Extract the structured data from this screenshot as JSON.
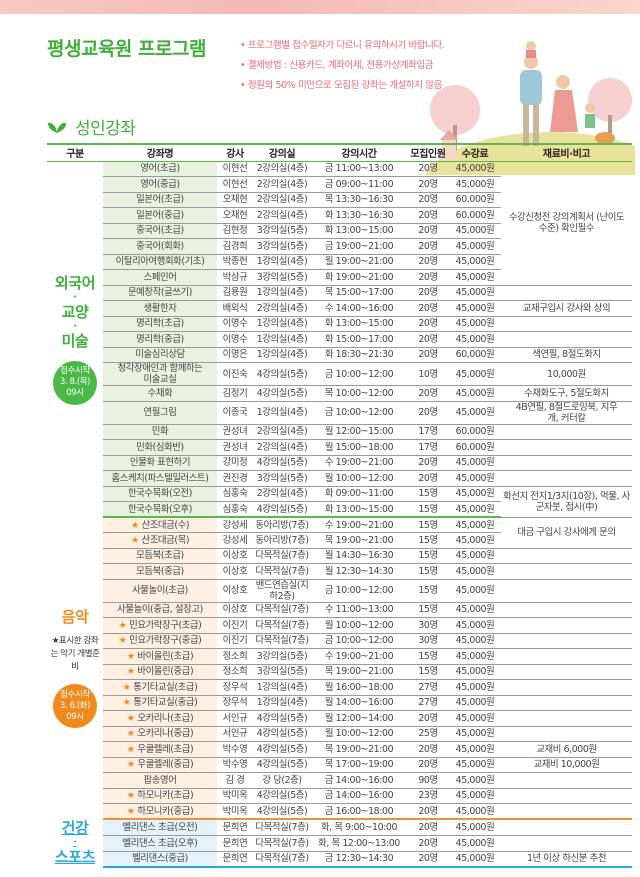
{
  "header": {
    "title": "평생교육원 프로그램",
    "notes": [
      "프로그램별 접수일자가 다르니 유의하시기 바랍니다.",
      "결제방법 : 신용카드, 계좌이체, 전용가상계좌입금",
      "정원의 50% 미만으로 모집된 강좌는 개설하지 않음"
    ]
  },
  "section_title": "성인강좌",
  "colors": {
    "green": "#3fae3a",
    "orange": "#f08a1c",
    "blue": "#29a8e0",
    "pink": "#ea6a73"
  },
  "columns": [
    "구분",
    "강좌명",
    "강사",
    "강의실",
    "강의시간",
    "모집인원",
    "수강료",
    "재료비·비고"
  ],
  "sections": [
    {
      "category": [
        "외국어",
        "·",
        "교양",
        "·",
        "미술"
      ],
      "badge": [
        "접수시작",
        "3. 8.(목)",
        "09시"
      ],
      "color": "#3fae3a",
      "rows": [
        {
          "name": "영어(초급)",
          "teacher": "이현선",
          "room": "2강의실(4층)",
          "time": "금 11:00~13:00",
          "cap": "20명",
          "fee": "45,000원",
          "note": "수강신청전 강의계획서 (난이도 수준) 확인필수",
          "note_span": 8
        },
        {
          "name": "영어(중급)",
          "teacher": "이현선",
          "room": "2강의실(4층)",
          "time": "금 09:00~11:00",
          "cap": "20명",
          "fee": "45,000원"
        },
        {
          "name": "일본어(초급)",
          "teacher": "오채현",
          "room": "2강의실(4층)",
          "time": "목 13:30~16:30",
          "cap": "20명",
          "fee": "60,000원"
        },
        {
          "name": "일본어(중급)",
          "teacher": "오채현",
          "room": "2강의실(4층)",
          "time": "화 13:30~16:30",
          "cap": "20명",
          "fee": "60,000원"
        },
        {
          "name": "중국어(초급)",
          "teacher": "김현정",
          "room": "3강의실(5층)",
          "time": "화 13:00~15:00",
          "cap": "20명",
          "fee": "45,000원"
        },
        {
          "name": "중국어(회화)",
          "teacher": "김경희",
          "room": "3강의실(5층)",
          "time": "금 19:00~21:00",
          "cap": "20명",
          "fee": "45,000원"
        },
        {
          "name": "이탈리아여행회화(기초)",
          "teacher": "박종헌",
          "room": "1강의실(4층)",
          "time": "월 19:00~21:00",
          "cap": "20명",
          "fee": "45,000원"
        },
        {
          "name": "스페인어",
          "teacher": "박삼규",
          "room": "3강의실(5층)",
          "time": "화 19:00~21:00",
          "cap": "20명",
          "fee": "45,000원"
        },
        {
          "name": "문예창작(글쓰기)",
          "teacher": "김용원",
          "room": "1강의실(4층)",
          "time": "목 15:00~17:00",
          "cap": "20명",
          "fee": "45,000원",
          "note": "",
          "note_span": 1
        },
        {
          "name": "생활한자",
          "teacher": "배외식",
          "room": "2강의실(4층)",
          "time": "수 14:00~16:00",
          "cap": "20명",
          "fee": "45,000원",
          "note": "교재구입시 강사와 상의",
          "note_span": 1
        },
        {
          "name": "명리학(초급)",
          "teacher": "이명수",
          "room": "1강의실(4층)",
          "time": "화 13:00~15:00",
          "cap": "20명",
          "fee": "45,000원",
          "note": "",
          "note_span": 1
        },
        {
          "name": "명리학(중급)",
          "teacher": "이명수",
          "room": "1강의실(4층)",
          "time": "화 15:00~17:00",
          "cap": "20명",
          "fee": "45,000원",
          "note": "",
          "note_span": 1
        },
        {
          "name": "미술심리상담",
          "teacher": "이명은",
          "room": "1강의실(4층)",
          "time": "화 18:30~21:30",
          "cap": "20명",
          "fee": "60,000원",
          "note": "색연필, 8절도화지",
          "note_span": 1
        },
        {
          "name": "청각장애인과 함께하는 미술교실",
          "teacher": "이진숙",
          "room": "4강의실(5층)",
          "time": "금 10:00~12:00",
          "cap": "10명",
          "fee": "45,000원",
          "note": "10,000원",
          "note_span": 1,
          "tall": true
        },
        {
          "name": "수채화",
          "teacher": "김정기",
          "room": "4강의실(5층)",
          "time": "목 10:00~12:00",
          "cap": "20명",
          "fee": "45,000원",
          "note": "수채화도구, 5절도화지",
          "note_span": 1
        },
        {
          "name": "연필그림",
          "teacher": "이종국",
          "room": "1강의실(4층)",
          "time": "금 10:00~12:00",
          "cap": "20명",
          "fee": "45,000원",
          "note": "4B연필, 8절드로잉북, 지우개, 커터칼",
          "note_span": 1,
          "tall": true
        },
        {
          "name": "민화",
          "teacher": "권성녀",
          "room": "2강의실(4층)",
          "time": "월 12:00~15:00",
          "cap": "17명",
          "fee": "60,000원",
          "note": "",
          "note_span": 1
        },
        {
          "name": "민화(심화반)",
          "teacher": "권성녀",
          "room": "2강의실(4층)",
          "time": "월 15:00~18:00",
          "cap": "17명",
          "fee": "60,000원",
          "note": "",
          "note_span": 1
        },
        {
          "name": "인물화 표현하기",
          "teacher": "강미정",
          "room": "4강의실(5층)",
          "time": "수 19:00~21:00",
          "cap": "20명",
          "fee": "45,000원",
          "note": "",
          "note_span": 1
        },
        {
          "name": "홈스케치(파스텔일러스트)",
          "teacher": "권진경",
          "room": "3강의실(5층)",
          "time": "월 10:00~12:00",
          "cap": "20명",
          "fee": "45,000원",
          "note": "",
          "note_span": 1
        },
        {
          "name": "한국수묵화(오전)",
          "teacher": "심홍숙",
          "room": "2강의실(4층)",
          "time": "화 09:00~11:00",
          "cap": "15명",
          "fee": "45,000원",
          "note": "화선지 전지1/3지(10장), 먹물, 사군자붓, 접시(中)",
          "note_span": 2
        },
        {
          "name": "한국수묵화(오후)",
          "teacher": "심홍숙",
          "room": "4강의실(5층)",
          "time": "화 13:00~15:00",
          "cap": "15명",
          "fee": "45,000원"
        }
      ]
    },
    {
      "category": [
        "음악"
      ],
      "remark": "★표시한 강좌는 악기 개별준비",
      "badge": [
        "접수시작",
        "3. 6.(화)",
        "09시"
      ],
      "color": "#f08a1c",
      "rows": [
        {
          "star": true,
          "name": "산조대금(수)",
          "teacher": "강성세",
          "room": "동아리방(7층)",
          "time": "수 19:00~21:00",
          "cap": "15명",
          "fee": "45,000원",
          "note": "대금 구입시 강사에게 문의",
          "note_span": 2
        },
        {
          "star": true,
          "name": "산조대금(목)",
          "teacher": "강성세",
          "room": "동아리방(7층)",
          "time": "목 19:00~21:00",
          "cap": "15명",
          "fee": "45,000원"
        },
        {
          "name": "모듬북(초급)",
          "teacher": "이상호",
          "room": "다목적실(7층)",
          "time": "월 14:30~16:30",
          "cap": "15명",
          "fee": "45,000원",
          "note": "",
          "note_span": 1
        },
        {
          "name": "모듬북(중급)",
          "teacher": "이상호",
          "room": "다목적실(7층)",
          "time": "월 12:30~14:30",
          "cap": "15명",
          "fee": "45,000원",
          "note": "",
          "note_span": 1
        },
        {
          "name": "사물놀이(초급)",
          "teacher": "이상호",
          "room": "밴드연습실(지하2층)",
          "time": "금 10:00~12:00",
          "cap": "15명",
          "fee": "45,000원",
          "note": "",
          "note_span": 1
        },
        {
          "name": "사물놀이(중급, 설장고)",
          "teacher": "이상호",
          "room": "다목적실(7층)",
          "time": "수 11:00~13:00",
          "cap": "15명",
          "fee": "45,000원",
          "note": "",
          "note_span": 1
        },
        {
          "star": true,
          "name": "민요가락장구(초급)",
          "teacher": "이진기",
          "room": "다목적실(7층)",
          "time": "월 10:00~12:00",
          "cap": "30명",
          "fee": "45,000원",
          "note": "",
          "note_span": 1
        },
        {
          "star": true,
          "name": "민요가락장구(중급)",
          "teacher": "이진기",
          "room": "다목적실(7층)",
          "time": "금 10:00~12:00",
          "cap": "30명",
          "fee": "45,000원",
          "note": "",
          "note_span": 1
        },
        {
          "star": true,
          "name": "바이올린(초급)",
          "teacher": "정소희",
          "room": "3강의실(5층)",
          "time": "수 19:00~21:00",
          "cap": "15명",
          "fee": "45,000원",
          "note": "",
          "note_span": 1
        },
        {
          "star": true,
          "name": "바이올린(중급)",
          "teacher": "정소희",
          "room": "3강의실(5층)",
          "time": "목 19:00~21:00",
          "cap": "15명",
          "fee": "45,000원",
          "note": "",
          "note_span": 1
        },
        {
          "star": true,
          "name": "통기타교실(초급)",
          "teacher": "장우석",
          "room": "1강의실(4층)",
          "time": "월 16:00~18:00",
          "cap": "27명",
          "fee": "45,000원",
          "note": "",
          "note_span": 1
        },
        {
          "star": true,
          "name": "통기타교실(중급)",
          "teacher": "장우석",
          "room": "1강의실(4층)",
          "time": "월 14:00~16:00",
          "cap": "27명",
          "fee": "45,000원",
          "note": "",
          "note_span": 1
        },
        {
          "star": true,
          "name": "오카리나(초급)",
          "teacher": "서인규",
          "room": "4강의실(5층)",
          "time": "월 12:00~14:00",
          "cap": "20명",
          "fee": "45,000원",
          "note": "",
          "note_span": 1
        },
        {
          "star": true,
          "name": "오카리나(중급)",
          "teacher": "서인규",
          "room": "4강의실(5층)",
          "time": "월 10:00~12:00",
          "cap": "25명",
          "fee": "45,000원",
          "note": "",
          "note_span": 1
        },
        {
          "star": true,
          "name": "우쿨렐레(초급)",
          "teacher": "박수영",
          "room": "4강의실(5층)",
          "time": "목 19:00~21:00",
          "cap": "20명",
          "fee": "45,000원",
          "note": "교재비 6,000원",
          "note_span": 1
        },
        {
          "star": true,
          "name": "우쿨렐레(중급)",
          "teacher": "박수영",
          "room": "4강의실(5층)",
          "time": "목 17:00~19:00",
          "cap": "20명",
          "fee": "45,000원",
          "note": "교재비 10,000원",
          "note_span": 1
        },
        {
          "name": "팝송영어",
          "teacher": "김 경",
          "room": "강 당(2층)",
          "time": "금 14:00~16:00",
          "cap": "90명",
          "fee": "45,000원",
          "note": "",
          "note_span": 1
        },
        {
          "star": true,
          "name": "하모니카(초급)",
          "teacher": "박미옥",
          "room": "4강의실(5층)",
          "time": "금 14:00~16:00",
          "cap": "23명",
          "fee": "45,000원",
          "note": "",
          "note_span": 1
        },
        {
          "star": true,
          "name": "하모니카(중급)",
          "teacher": "박미옥",
          "room": "4강의실(5층)",
          "time": "금 16:00~18:00",
          "cap": "20명",
          "fee": "45,000원",
          "note": "",
          "note_span": 1
        }
      ]
    },
    {
      "category": [
        "건강",
        "·",
        "스포츠"
      ],
      "color": "#29a8e0",
      "rows": [
        {
          "name": "벨리댄스 초급(오전)",
          "teacher": "문희연",
          "room": "다목적실(7층)",
          "time": "화, 목 9:00~10:00",
          "cap": "20명",
          "fee": "45,000원",
          "note": "",
          "note_span": 1
        },
        {
          "name": "벨리댄스 초급(오후)",
          "teacher": "문희연",
          "room": "다목적실(7층)",
          "time": "화, 목 12:00~13:00",
          "cap": "20명",
          "fee": "45,000원",
          "note": "",
          "note_span": 1
        },
        {
          "name": "벨리댄스(중급)",
          "teacher": "문희연",
          "room": "다목적실(7층)",
          "time": "금 12:30~14:30",
          "cap": "20명",
          "fee": "45,000원",
          "note": "1년 이상 하신분 추천",
          "note_span": 1
        }
      ]
    }
  ]
}
